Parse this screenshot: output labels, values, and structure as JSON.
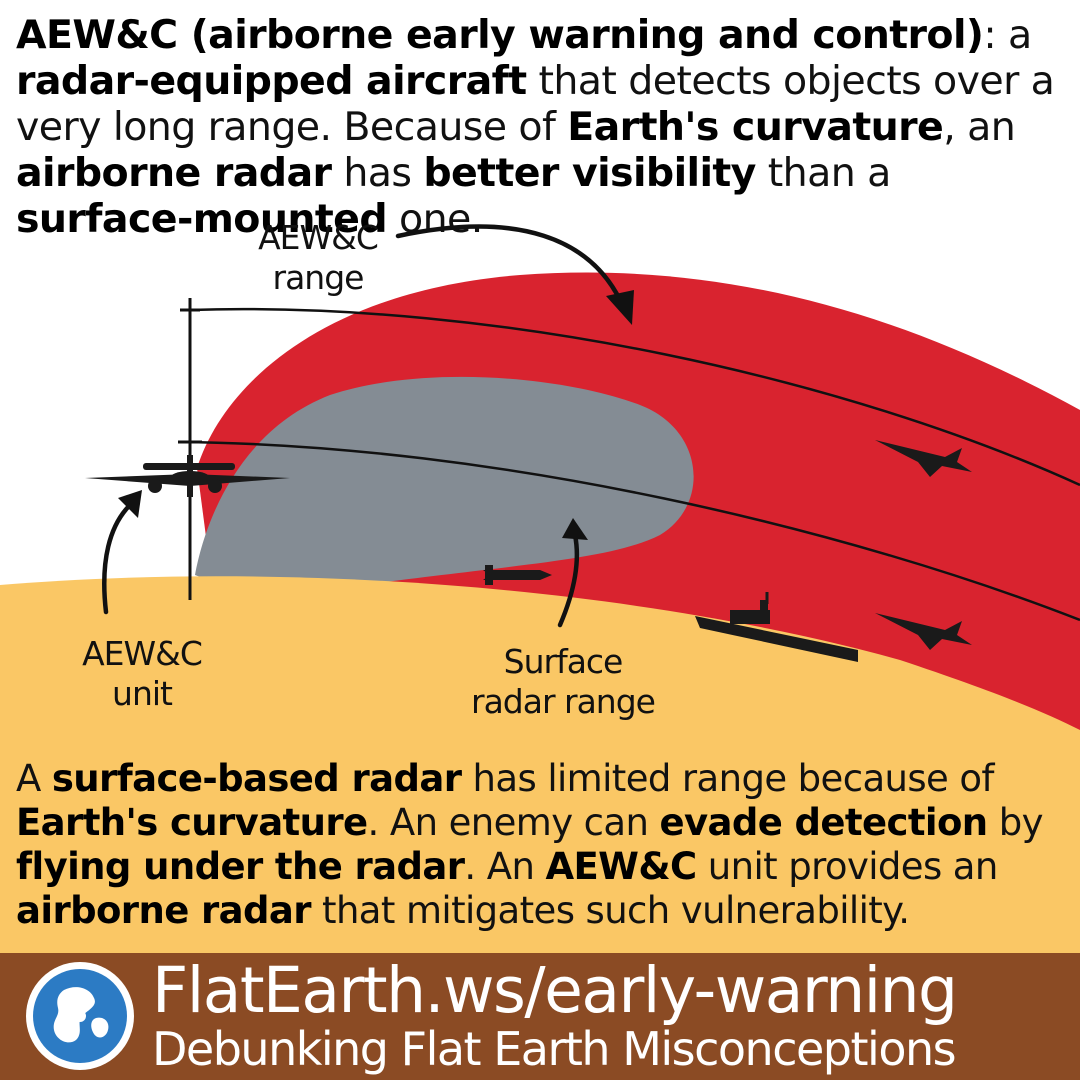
{
  "header": {
    "p1_b1": "AEW&C (airborne early warning and control)",
    "p1_t1": ": a ",
    "p1_b2": "radar-equipped aircraft",
    "p1_t2": " that detects objects over a very long range. Because of ",
    "p1_b3": "Earth's curvature",
    "p1_t3": ", an ",
    "p1_b4": "airborne radar",
    "p1_t4": " has ",
    "p1_b5": "better visibility",
    "p1_t5": " than a ",
    "p1_b6": "surface-mounted",
    "p1_t6": " one."
  },
  "labels": {
    "aewc_range_l1": "AEW&C",
    "aewc_range_l2": "range",
    "aewc_unit_l1": "AEW&C",
    "aewc_unit_l2": "unit",
    "surface_l1": "Surface",
    "surface_l2": "radar range"
  },
  "body": {
    "t1": "A ",
    "b1": "surface-based radar",
    "t2": " has limited range because of ",
    "b2": "Earth's curvature",
    "t3": ". An enemy can ",
    "b3": "evade detection",
    "t4": " by ",
    "b4": "flying under the radar",
    "t5": ". An ",
    "b5": "AEW&C",
    "t6": " unit provides an ",
    "b6": "airborne radar",
    "t7": " that mitigates such vulnerability."
  },
  "footer": {
    "url": "FlatEarth.ws/early-warning",
    "tagline": "Debunking Flat Earth Misconceptions"
  },
  "colors": {
    "aewc_range": "#d9232f",
    "surface_range": "#848c94",
    "earth": "#fac765",
    "footer": "#8b4b24"
  }
}
